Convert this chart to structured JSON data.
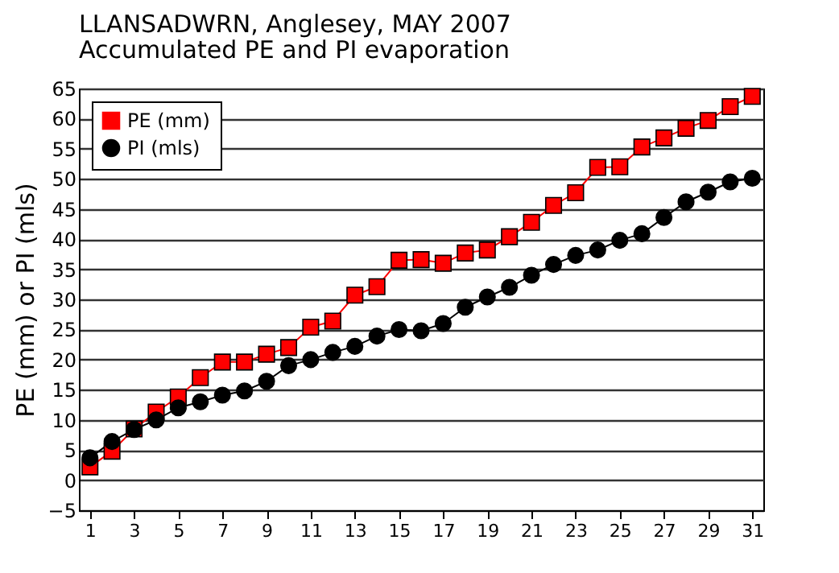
{
  "chart_data": {
    "type": "line",
    "title": "LLANSADWRN, Anglesey, MAY 2007",
    "subtitle": "Accumulated PE and PI evaporation",
    "ylabel": "PE (mm) or PI (mls)",
    "x": [
      1,
      2,
      3,
      4,
      5,
      6,
      7,
      8,
      9,
      10,
      11,
      12,
      13,
      14,
      15,
      16,
      17,
      18,
      19,
      20,
      21,
      22,
      23,
      24,
      25,
      26,
      27,
      28,
      29,
      30,
      31
    ],
    "series": [
      {
        "name": "PE (mm)",
        "color": "#ff0000",
        "marker": "square",
        "values": [
          2.2,
          4.8,
          8.5,
          11.3,
          13.8,
          17,
          19.6,
          19.6,
          20.9,
          22,
          25.4,
          26.4,
          30.7,
          32.1,
          36.5,
          36.6,
          36,
          37.7,
          38.2,
          40.4,
          42.8,
          45.6,
          47.7,
          51.9,
          52,
          55.3,
          56.8,
          58.4,
          59.7,
          62,
          63.7
        ]
      },
      {
        "name": "PI (mls)",
        "color": "#000000",
        "marker": "circle",
        "values": [
          3.7,
          6.4,
          8.4,
          10,
          12,
          13,
          14.1,
          14.8,
          16.4,
          19,
          20,
          21.2,
          22.2,
          23.9,
          25,
          24.8,
          26,
          28.7,
          30.4,
          32,
          34,
          35.8,
          37.3,
          38.2,
          39.8,
          40.9,
          43.6,
          46.2,
          47.8,
          49.5,
          50.1
        ]
      }
    ],
    "xlim": [
      0.5,
      31.5
    ],
    "xticks": [
      1,
      3,
      5,
      7,
      9,
      11,
      13,
      15,
      17,
      19,
      21,
      23,
      25,
      27,
      29,
      31
    ],
    "ylim": [
      -5,
      65
    ],
    "yticks": [
      -5,
      0,
      5,
      10,
      15,
      20,
      25,
      30,
      35,
      40,
      45,
      50,
      55,
      60,
      65
    ],
    "grid": "y",
    "legend": "top left"
  }
}
